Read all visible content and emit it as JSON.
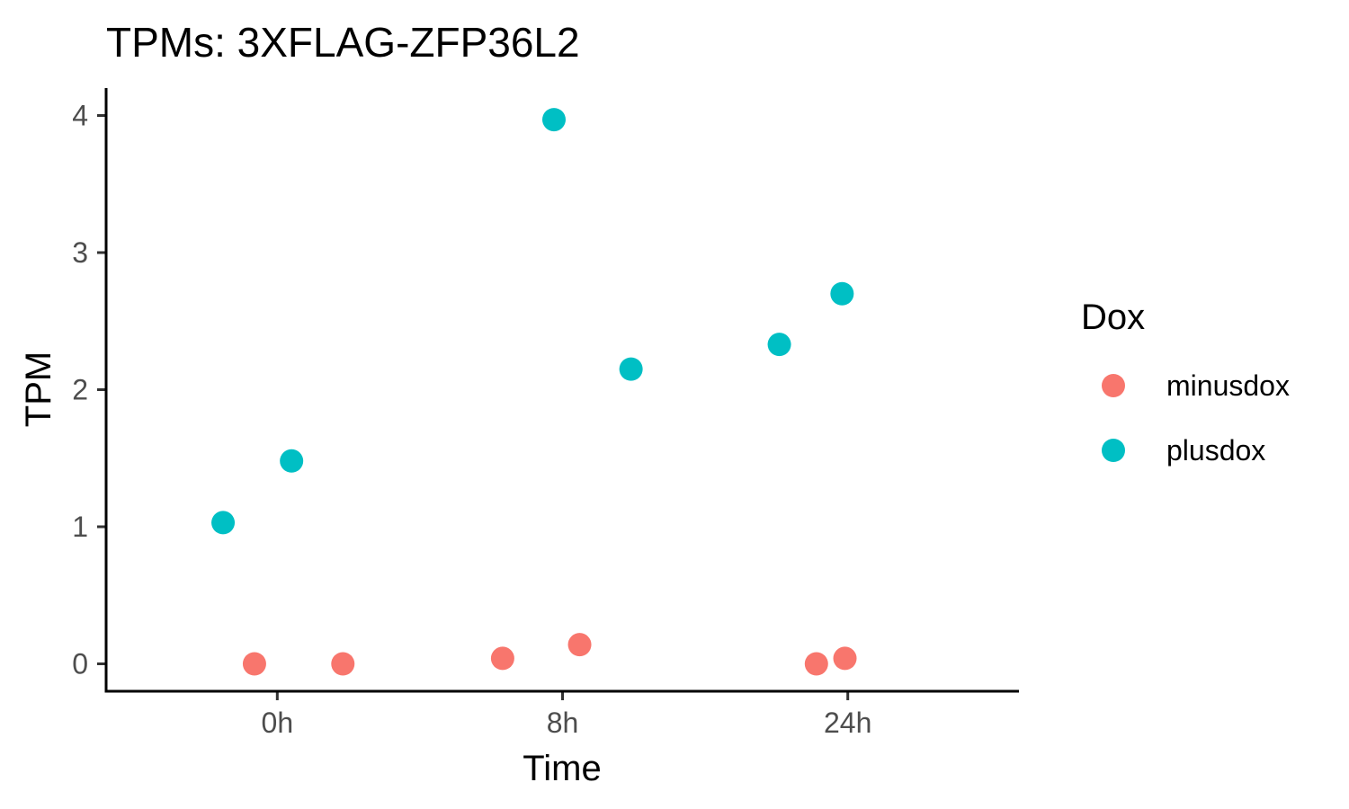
{
  "chart_data": {
    "type": "scatter",
    "title": "TPMs: 3XFLAG-ZFP36L2",
    "xlabel": "Time",
    "ylabel": "TPM",
    "x_type": "categorical",
    "categories": [
      "0h",
      "8h",
      "24h"
    ],
    "ylim": [
      -0.2,
      4.2
    ],
    "yticks": [
      0,
      1,
      2,
      3,
      4
    ],
    "grid": false,
    "legend": {
      "title": "Dox",
      "placement": "right"
    },
    "series": [
      {
        "name": "minusdox",
        "color": "#F8766D",
        "points": [
          {
            "x": "0h",
            "jitter": -0.08,
            "y": 0.0
          },
          {
            "x": "0h",
            "jitter": 0.23,
            "y": 0.0
          },
          {
            "x": "8h",
            "jitter": -0.21,
            "y": 0.04
          },
          {
            "x": "8h",
            "jitter": 0.06,
            "y": 0.14
          },
          {
            "x": "24h",
            "jitter": -0.11,
            "y": 0.0
          },
          {
            "x": "24h",
            "jitter": -0.01,
            "y": 0.04
          }
        ]
      },
      {
        "name": "plusdox",
        "color": "#00BFC4",
        "points": [
          {
            "x": "0h",
            "jitter": -0.19,
            "y": 1.03
          },
          {
            "x": "0h",
            "jitter": 0.05,
            "y": 1.48
          },
          {
            "x": "8h",
            "jitter": -0.03,
            "y": 3.97
          },
          {
            "x": "8h",
            "jitter": 0.24,
            "y": 2.15
          },
          {
            "x": "24h",
            "jitter": -0.24,
            "y": 2.33
          },
          {
            "x": "24h",
            "jitter": -0.02,
            "y": 2.7
          }
        ]
      }
    ]
  }
}
